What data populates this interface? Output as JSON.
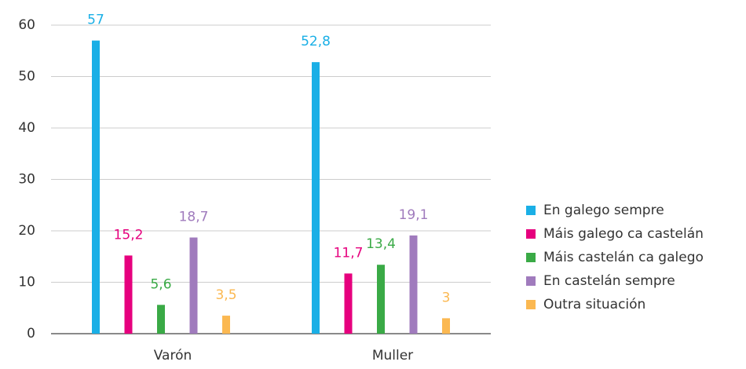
{
  "chart_data": {
    "type": "bar",
    "categories": [
      "Varón",
      "Muller"
    ],
    "series": [
      {
        "name": "En galego sempre",
        "color": "#1aafe6",
        "values": [
          57,
          52.8
        ],
        "value_labels": [
          "57",
          "52,8"
        ]
      },
      {
        "name": "Máis galego ca castelán",
        "color": "#e6007e",
        "values": [
          15.2,
          11.7
        ],
        "value_labels": [
          "15,2",
          "11,7"
        ]
      },
      {
        "name": "Máis castelán ca galego",
        "color": "#3aaa46",
        "values": [
          5.6,
          13.4
        ],
        "value_labels": [
          "5,6",
          "13,4"
        ]
      },
      {
        "name": "En castelán sempre",
        "color": "#a07bbd",
        "values": [
          18.7,
          19.1
        ],
        "value_labels": [
          "18,7",
          "19,1"
        ]
      },
      {
        "name": "Outra situación",
        "color": "#fbb851",
        "values": [
          3.5,
          3
        ],
        "value_labels": [
          "3,5",
          "3"
        ]
      }
    ],
    "ylim": [
      0,
      60
    ],
    "yticks": [
      0,
      10,
      20,
      30,
      40,
      50,
      60
    ],
    "grid": true,
    "legend": "right"
  }
}
